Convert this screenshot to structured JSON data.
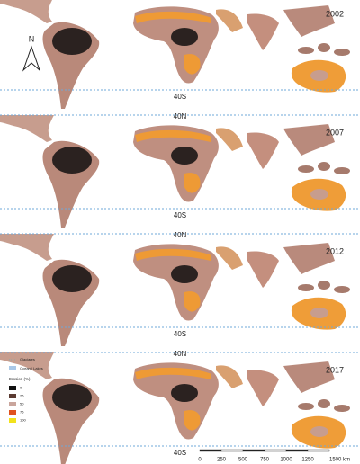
{
  "north_arrow": "N",
  "panels": [
    {
      "year": "2002",
      "lat_labels": [
        "40S"
      ]
    },
    {
      "year": "2007",
      "lat_labels": [
        "40N",
        "40S"
      ]
    },
    {
      "year": "2012",
      "lat_labels": [
        "40N",
        "40S"
      ]
    },
    {
      "year": "2017",
      "lat_labels": [
        "40N",
        "40S"
      ]
    }
  ],
  "legend": {
    "glaciers": "Glaciares",
    "ocean": "Ocean / Lakes",
    "title": "Erosion (%)",
    "items": [
      {
        "label": "0",
        "color": "#111111"
      },
      {
        "label": "25",
        "color": "#5b3b32"
      },
      {
        "label": "50",
        "color": "#c9a59c"
      },
      {
        "label": "75",
        "color": "#e0521e"
      },
      {
        "label": "100",
        "color": "#f2e21c"
      }
    ]
  },
  "scale_bar": {
    "labels": [
      "0",
      "250",
      "500",
      "750",
      "1000",
      "1250",
      "1500 km"
    ]
  }
}
